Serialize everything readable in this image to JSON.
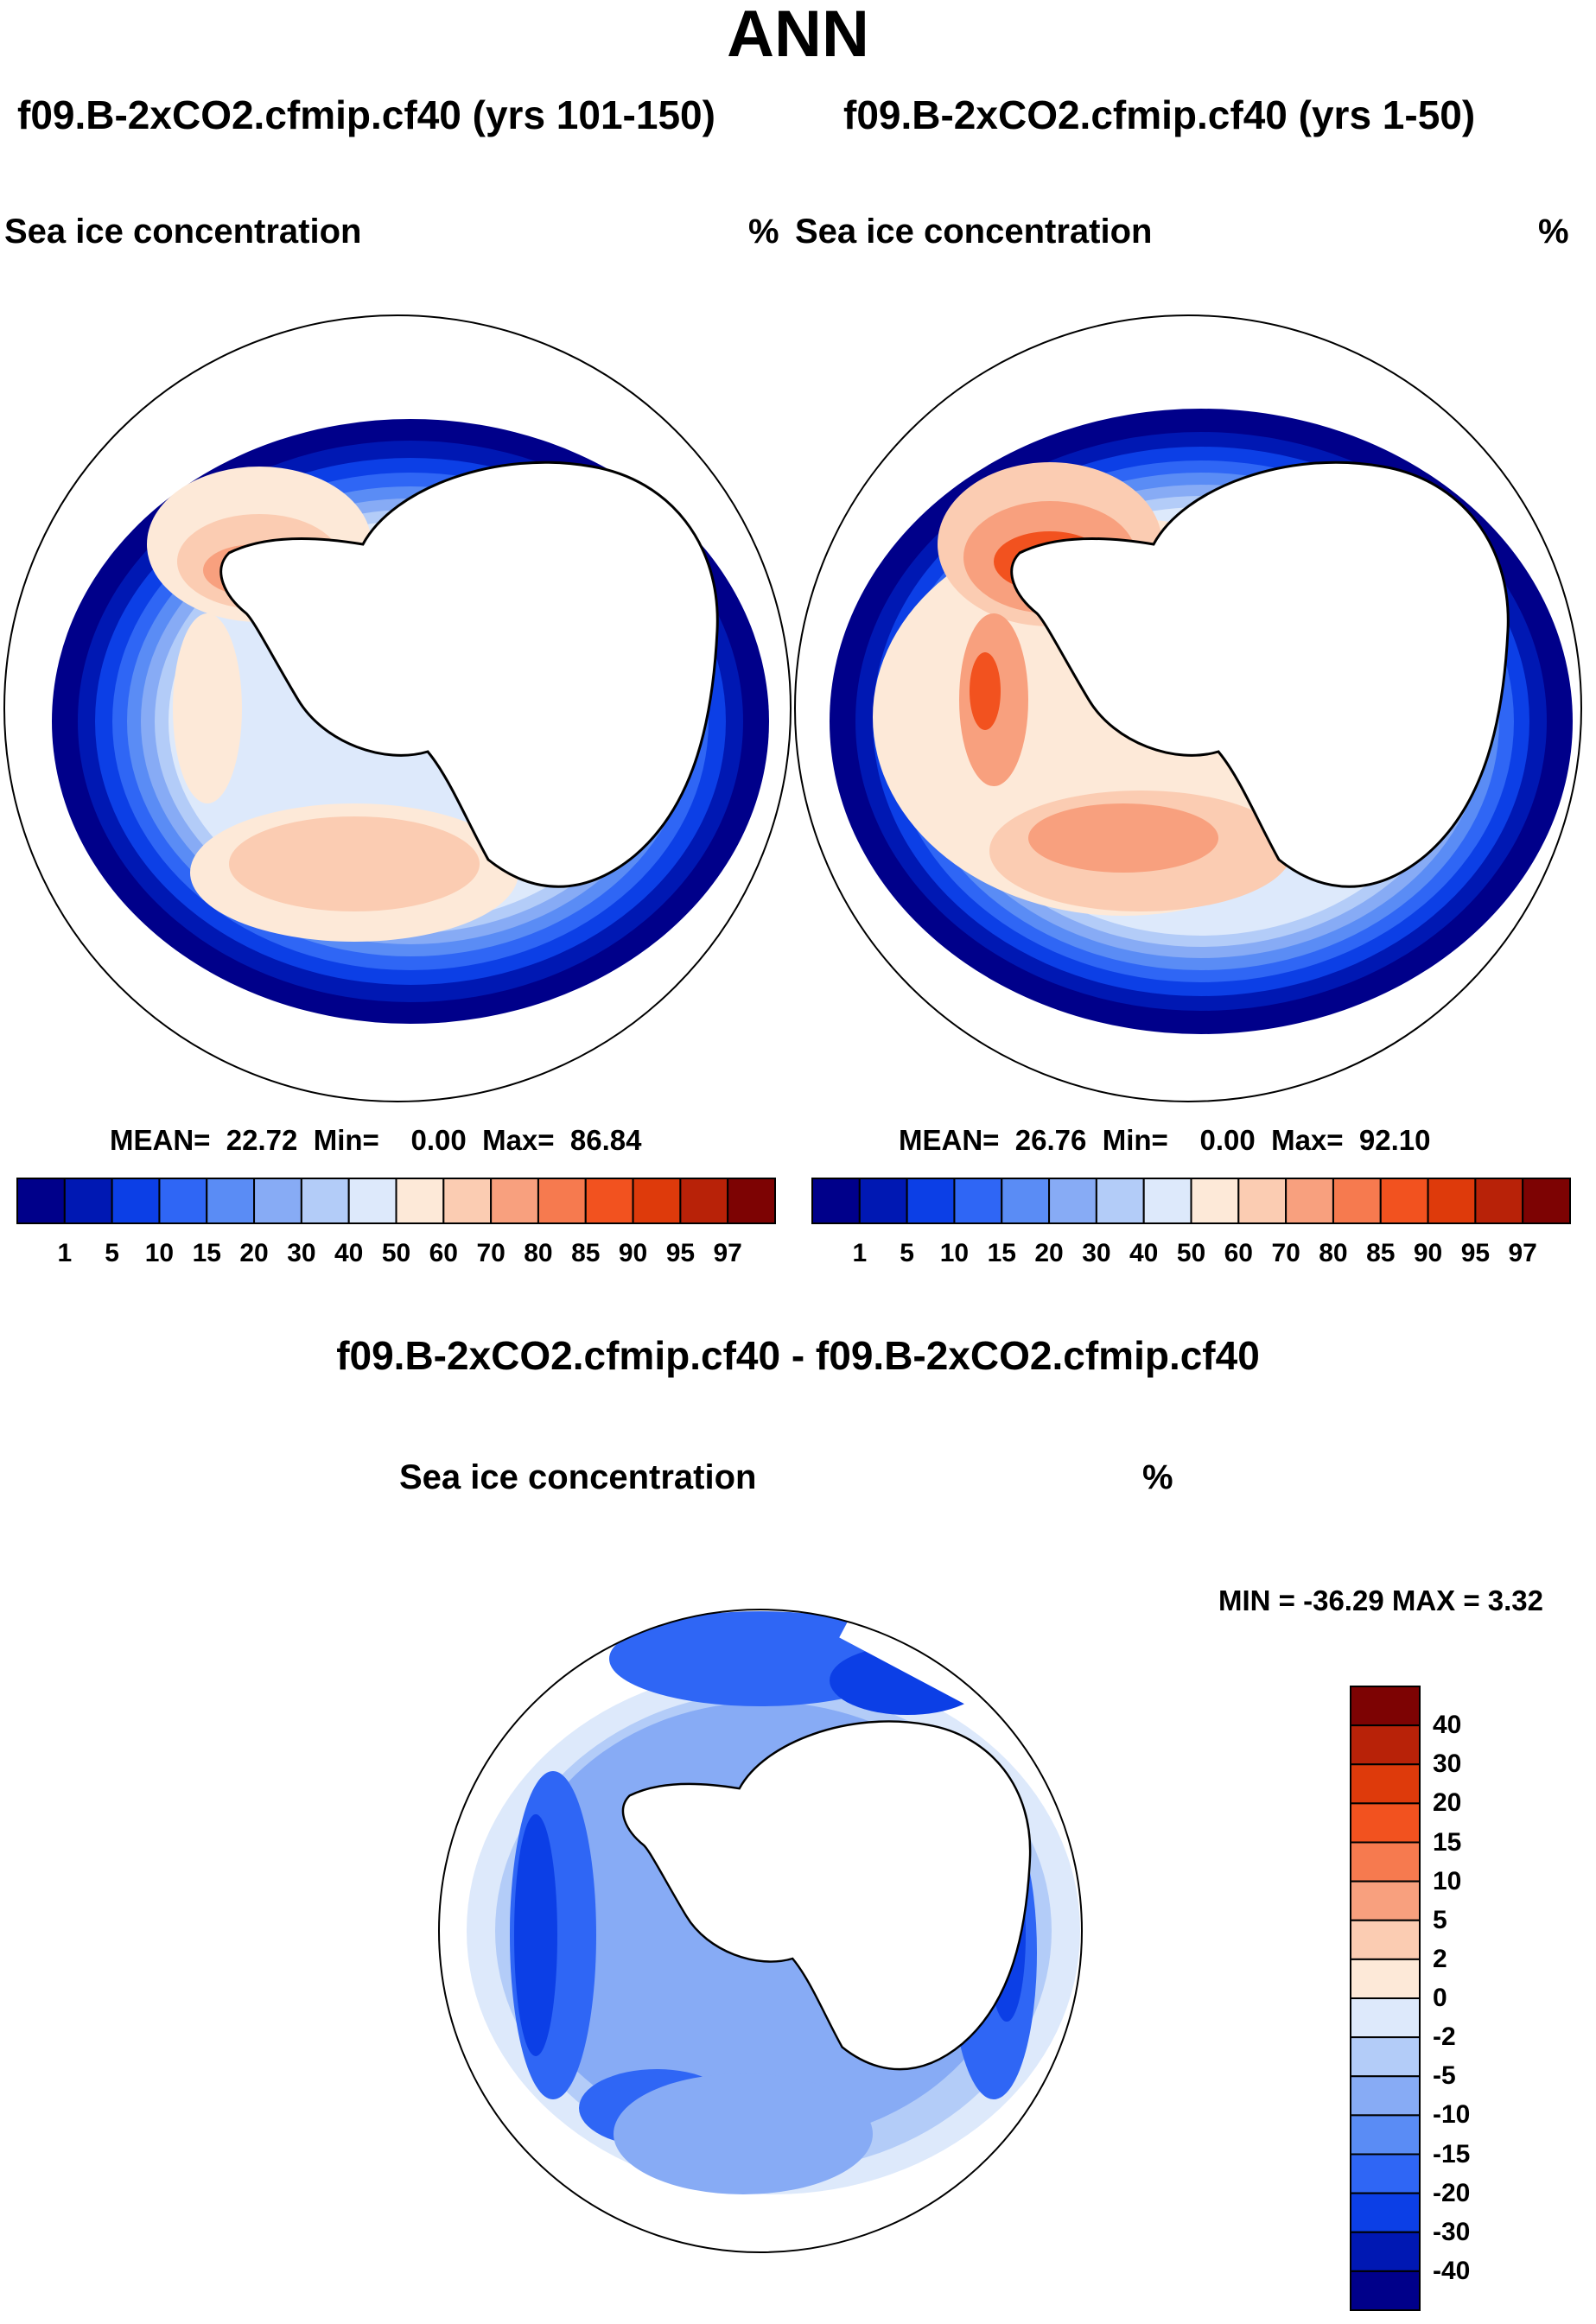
{
  "title": "ANN",
  "panels": [
    {
      "case_title": "f09.B-2xCO2.cfmip.cf40 (yrs 101-150)",
      "variable": "Sea ice concentration",
      "units": "%",
      "stats": {
        "mean_label": "MEAN=",
        "mean": "22.72",
        "min_label": "Min=",
        "min": "0.00",
        "max_label": "Max=",
        "max": "86.84"
      }
    },
    {
      "case_title": "f09.B-2xCO2.cfmip.cf40 (yrs 1-50)",
      "variable": "Sea ice concentration",
      "units": "%",
      "stats": {
        "mean_label": "MEAN=",
        "mean": "26.76",
        "min_label": "Min=",
        "min": "0.00",
        "max_label": "Max=",
        "max": "92.10"
      }
    }
  ],
  "diff_panel": {
    "title": "f09.B-2xCO2.cfmip.cf40 - f09.B-2xCO2.cfmip.cf40",
    "variable": "Sea ice concentration",
    "units": "%",
    "minmax": "MIN = -36.29 MAX =   3.32"
  },
  "abs_colorbar": {
    "colors": [
      "#00008a",
      "#0018b3",
      "#0c3fe6",
      "#2f66f5",
      "#5a8cf5",
      "#87abf5",
      "#b3ccf8",
      "#dde9fb",
      "#fde9d8",
      "#fbccb2",
      "#f8a07e",
      "#f67a4f",
      "#f2521f",
      "#de3a0b",
      "#b82208",
      "#7d0303"
    ],
    "labels": [
      "1",
      "5",
      "10",
      "15",
      "20",
      "30",
      "40",
      "50",
      "60",
      "70",
      "80",
      "85",
      "90",
      "95",
      "97"
    ]
  },
  "diff_colorbar": {
    "colors": [
      "#7d0303",
      "#b82208",
      "#de3a0b",
      "#f2521f",
      "#f67a4f",
      "#f8a07e",
      "#fbccb2",
      "#fde9d8",
      "#dde9fb",
      "#b3ccf8",
      "#87abf5",
      "#5a8cf5",
      "#2f66f5",
      "#0c3fe6",
      "#0018b3",
      "#00008a"
    ],
    "labels": [
      "40",
      "30",
      "20",
      "15",
      "10",
      "5",
      "2",
      "0",
      "-2",
      "-5",
      "-10",
      "-15",
      "-20",
      "-30",
      "-40"
    ]
  }
}
